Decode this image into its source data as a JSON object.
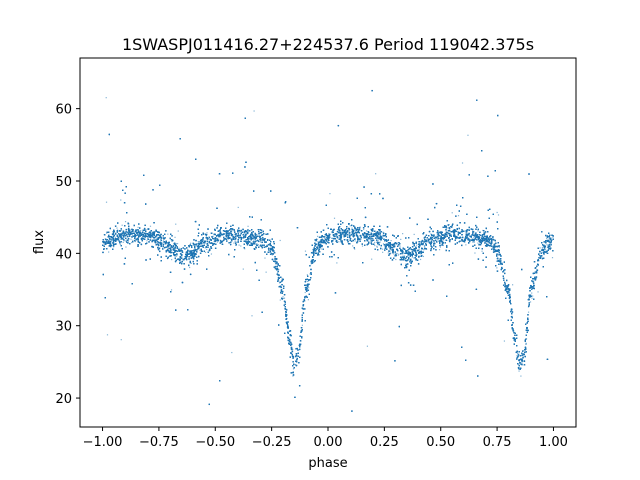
{
  "chart_data": {
    "type": "scatter",
    "title": "1SWASPJ011416.27+224537.6 Period 119042.375s",
    "xlabel": "phase",
    "ylabel": "flux",
    "xlim": [
      -1.1,
      1.1
    ],
    "ylim": [
      16,
      67
    ],
    "xticks": [
      -1.0,
      -0.75,
      -0.5,
      -0.25,
      0.0,
      0.25,
      0.5,
      0.75,
      1.0
    ],
    "xtick_labels": [
      "−1.00",
      "−0.75",
      "−0.50",
      "−0.25",
      "0.00",
      "0.25",
      "0.50",
      "0.75",
      "1.00"
    ],
    "yticks": [
      20,
      30,
      40,
      50,
      60
    ],
    "ytick_labels": [
      "20",
      "30",
      "40",
      "50",
      "60"
    ],
    "grid": false,
    "point_color": "#1f77b4",
    "light_curve": {
      "phase": [
        -1.0,
        -0.9,
        -0.8,
        -0.7,
        -0.65,
        -0.6,
        -0.55,
        -0.45,
        -0.3,
        -0.25,
        -0.2,
        -0.17,
        -0.15,
        -0.13,
        -0.1,
        -0.05,
        0.0,
        0.1,
        0.2,
        0.3,
        0.35,
        0.4,
        0.45,
        0.55,
        0.7,
        0.75,
        0.8,
        0.83,
        0.85,
        0.87,
        0.9,
        0.95,
        1.0
      ],
      "flux": [
        41.5,
        42.5,
        42.5,
        41.0,
        39.5,
        40.0,
        41.5,
        42.5,
        42.0,
        40.5,
        35.0,
        28.0,
        24.5,
        26.0,
        35.0,
        41.0,
        42.3,
        42.7,
        42.3,
        40.8,
        39.5,
        40.3,
        41.8,
        42.7,
        42.0,
        40.5,
        35.0,
        28.0,
        24.5,
        26.0,
        35.0,
        40.5,
        42.0
      ]
    },
    "scatter_range": [
      18,
      64
    ],
    "n_points": 26000
  }
}
